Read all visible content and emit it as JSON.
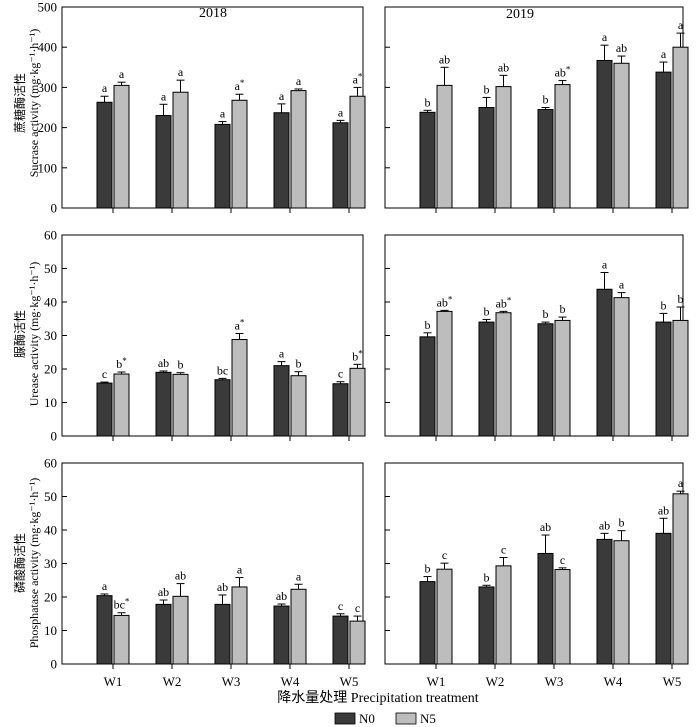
{
  "colors": {
    "N0": "#3a3a3a",
    "N5": "#bdbdbd",
    "axis": "#000000"
  },
  "figure": {
    "xlabel": "降水量处理 Precipitation treatment",
    "year_labels": [
      "2018",
      "2019"
    ],
    "legend": [
      "N0",
      "N5"
    ]
  },
  "chart_data": [
    {
      "type": "bar",
      "year": "2018",
      "metric": "sucrase",
      "ylabel_cn": "蔗糖酶活性",
      "ylabel_en": "Sucrase activity (mg·kg⁻¹·h⁻¹)",
      "ylim": [
        0,
        500
      ],
      "yticks": [
        0,
        100,
        200,
        300,
        400,
        500
      ],
      "categories": [
        "W1",
        "W2",
        "W3",
        "W4",
        "W5"
      ],
      "series": [
        {
          "name": "N0",
          "values": [
            263,
            230,
            208,
            237,
            212
          ],
          "errors": [
            15,
            28,
            7,
            22,
            6
          ],
          "labels": [
            "a",
            "a",
            "a",
            "a",
            "a"
          ]
        },
        {
          "name": "N5",
          "values": [
            305,
            288,
            268,
            292,
            278
          ],
          "errors": [
            8,
            30,
            15,
            4,
            22
          ],
          "labels": [
            "a",
            "a",
            "a*",
            "a",
            "a*"
          ]
        }
      ]
    },
    {
      "type": "bar",
      "year": "2019",
      "metric": "sucrase",
      "ylim": [
        0,
        500
      ],
      "yticks": [
        0,
        100,
        200,
        300,
        400,
        500
      ],
      "categories": [
        "W1",
        "W2",
        "W3",
        "W4",
        "W5"
      ],
      "series": [
        {
          "name": "N0",
          "values": [
            238,
            250,
            245,
            367,
            338
          ],
          "errors": [
            5,
            25,
            5,
            38,
            25
          ],
          "labels": [
            "b",
            "b",
            "b",
            "a",
            "a"
          ]
        },
        {
          "name": "N5",
          "values": [
            305,
            302,
            307,
            360,
            400
          ],
          "errors": [
            45,
            28,
            10,
            18,
            35
          ],
          "labels": [
            "ab",
            "ab",
            "ab*",
            "ab",
            "a"
          ]
        }
      ]
    },
    {
      "type": "bar",
      "year": "2018",
      "metric": "urease",
      "ylabel_cn": "脲酶活性",
      "ylabel_en": "Urease activity (mg·kg⁻¹·h⁻¹)",
      "ylim": [
        0,
        60
      ],
      "yticks": [
        0,
        10,
        20,
        30,
        40,
        50,
        60
      ],
      "categories": [
        "W1",
        "W2",
        "W3",
        "W4",
        "W5"
      ],
      "series": [
        {
          "name": "N0",
          "values": [
            15.8,
            19.0,
            16.8,
            21.0,
            15.6
          ],
          "errors": [
            0.3,
            0.4,
            0.4,
            1.2,
            0.6
          ],
          "labels": [
            "c",
            "ab",
            "bc",
            "a",
            "c"
          ]
        },
        {
          "name": "N5",
          "values": [
            18.5,
            18.4,
            28.8,
            18.0,
            20.2
          ],
          "errors": [
            0.6,
            0.5,
            1.8,
            1.2,
            1.2
          ],
          "labels": [
            "b*",
            "b",
            "a*",
            "b",
            "b*"
          ]
        }
      ]
    },
    {
      "type": "bar",
      "year": "2019",
      "metric": "urease",
      "ylim": [
        0,
        60
      ],
      "yticks": [
        0,
        10,
        20,
        30,
        40,
        50,
        60
      ],
      "categories": [
        "W1",
        "W2",
        "W3",
        "W4",
        "W5"
      ],
      "series": [
        {
          "name": "N0",
          "values": [
            29.6,
            34.0,
            33.5,
            43.8,
            34.0
          ],
          "errors": [
            1.2,
            0.8,
            0.5,
            5.0,
            2.6
          ],
          "labels": [
            "b",
            "b",
            "b",
            "a",
            "b"
          ]
        },
        {
          "name": "N5",
          "values": [
            37.2,
            36.8,
            34.5,
            41.3,
            34.5
          ],
          "errors": [
            0.3,
            0.4,
            1.0,
            1.5,
            4.0
          ],
          "labels": [
            "ab*",
            "ab*",
            "b",
            "a",
            "b"
          ]
        }
      ]
    },
    {
      "type": "bar",
      "year": "2018",
      "metric": "phosphatase",
      "ylabel_cn": "磷酸酶活性",
      "ylabel_en": "Phosphatase activity (mg·kg⁻¹·h⁻¹)",
      "ylim": [
        0,
        60
      ],
      "yticks": [
        0,
        10,
        20,
        30,
        40,
        50,
        60
      ],
      "categories": [
        "W1",
        "W2",
        "W3",
        "W4",
        "W5"
      ],
      "series": [
        {
          "name": "N0",
          "values": [
            20.4,
            17.8,
            17.8,
            17.3,
            14.3
          ],
          "errors": [
            0.5,
            1.3,
            2.8,
            0.6,
            0.7
          ],
          "labels": [
            "a",
            "ab",
            "ab",
            "ab",
            "c"
          ]
        },
        {
          "name": "N5",
          "values": [
            14.5,
            20.2,
            23.0,
            22.3,
            12.8
          ],
          "errors": [
            0.8,
            3.8,
            2.8,
            1.5,
            1.5
          ],
          "labels": [
            "bc*",
            "ab",
            "a",
            "a",
            "c"
          ]
        }
      ]
    },
    {
      "type": "bar",
      "year": "2019",
      "metric": "phosphatase",
      "ylim": [
        0,
        60
      ],
      "yticks": [
        0,
        10,
        20,
        30,
        40,
        50,
        60
      ],
      "categories": [
        "W1",
        "W2",
        "W3",
        "W4",
        "W5"
      ],
      "series": [
        {
          "name": "N0",
          "values": [
            24.6,
            23.0,
            33.0,
            37.2,
            39.0
          ],
          "errors": [
            1.5,
            0.5,
            5.5,
            1.8,
            4.5
          ],
          "labels": [
            "b",
            "b",
            "ab",
            "ab",
            "ab"
          ]
        },
        {
          "name": "N5",
          "values": [
            28.3,
            29.3,
            28.2,
            36.8,
            50.8
          ],
          "errors": [
            1.8,
            2.5,
            0.5,
            3.0,
            0.8
          ],
          "labels": [
            "c",
            "c",
            "c",
            "b",
            "a"
          ]
        }
      ]
    }
  ]
}
